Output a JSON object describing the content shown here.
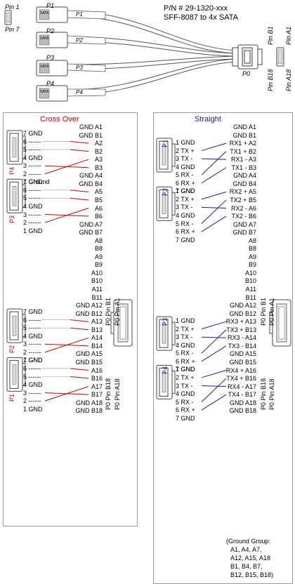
{
  "cable": {
    "part_number": "P/N # 29-1320-xxx",
    "description": "SFF-8087 to 4x SATA",
    "pin1": "Pin 1",
    "pin7": "Pin 7",
    "pin_b1": "Pin B1",
    "pin_a1": "Pin A1",
    "pin_b18": "Pin B18",
    "pin_a18": "Pin A18",
    "p0": "P0",
    "legs": [
      {
        "label": "P1",
        "tag": "P1",
        "sata": "SATA"
      },
      {
        "label": "P2",
        "tag": "P2",
        "sata": "SATA"
      },
      {
        "label": "P3",
        "tag": "P3",
        "sata": "SATA"
      },
      {
        "label": "P4",
        "tag": "P4",
        "sata": "SATA"
      }
    ]
  },
  "crossover": {
    "title": "Cross Over",
    "connectors": [
      "P4",
      "P3",
      "P2",
      "P1"
    ],
    "p0_labels": [
      "P0 Pin B1",
      "P0 Pin A1",
      "P0 Pin B18",
      "P0 Pin A18"
    ],
    "sata_pins": [
      "7 GND",
      "6 ------",
      "5 ------",
      "4 GND",
      "3 ------",
      "2 ------",
      "1 Ground",
      "7 GND",
      "6 ------",
      "5 ------",
      "4 GND",
      "3 ------",
      "2 ------",
      "1 GND",
      "7 GND",
      "6 ------",
      "5 ------",
      "4 GND",
      "3 ------",
      "2 ------",
      "1 GND",
      "7 GND",
      "6 ------",
      "5 ------",
      "4 GND",
      "3 ------",
      "2 ------",
      "1 GND"
    ],
    "sff_pins": [
      "GND  A1",
      "GND  B1",
      "A2",
      "B2",
      "A3",
      "B3",
      "GND  A4",
      "GND  B4",
      "A5",
      "B5",
      "A6",
      "B6",
      "GND  A7",
      "GND  B7",
      "A8",
      "B8",
      "A9",
      "B9",
      "A10",
      "B10",
      "A11",
      "B11",
      "GND  A12",
      "GND  B12",
      "A13",
      "B13",
      "A14",
      "B14",
      "GND  A15",
      "GND  B15",
      "A16",
      "B16",
      "A17",
      "B17",
      "GND  A18",
      "GND  B18"
    ]
  },
  "straight": {
    "title": "Straight",
    "connectors": [
      "P1",
      "P2",
      "P3",
      "P4"
    ],
    "p0_labels": [
      "P0 Pin B1",
      "P0 Pin A1",
      "P0 Pin B18",
      "P0 Pin A18"
    ],
    "sata_pins": [
      "1 GND",
      "2 TX +",
      "3 TX -",
      "4 GND",
      "5 RX -",
      "6 RX +",
      "7 GND",
      "1 GND",
      "2 TX +",
      "3 TX -",
      "4 GND",
      "5 RX -",
      "6 RX +",
      "7 GND",
      "1 GND",
      "2 TX +",
      "3 TX -",
      "4 GND",
      "5 RX -",
      "6 RX +",
      "7 GND",
      "1 GND",
      "2 TX +",
      "3 TX -",
      "4 GND",
      "5 RX -",
      "6 RX +",
      "7 GND"
    ],
    "sff_pins": [
      "GND  A1",
      "GND  B1",
      "RX1 + A2",
      "TX1 + B2",
      "RX1 -  A3",
      "TX1 -  B3",
      "GND  A4",
      "GND  B4",
      "RX2 + A5",
      "TX2 + B5",
      "RX2 -  A6",
      "TX2 -  B6",
      "GND  A7",
      "GND  B7",
      "A8",
      "B8",
      "A9",
      "B9",
      "A10",
      "B10",
      "A11",
      "B11",
      "GND  A12",
      "GND  B12",
      "RX3 + A13",
      "TX3 + B13",
      "RX3 -  A14",
      "TX3 -  B14",
      "GND  A15",
      "GND  B15",
      "RX4 + A16",
      "TX4 + B16",
      "RX4 -  A17",
      "TX4 -  B17",
      "GND  A18",
      "GND  B18"
    ],
    "ground_group": [
      "(Ground Group:",
      "A1,   A4,   A7,",
      "A12, A15, A18",
      "B1,   B4,   B7,",
      "B12, B15, B18)"
    ]
  },
  "colors": {
    "crossover": "#cc0000",
    "straight": "#1a1aa8",
    "line": "#333333",
    "border": "#9a9a9a"
  }
}
